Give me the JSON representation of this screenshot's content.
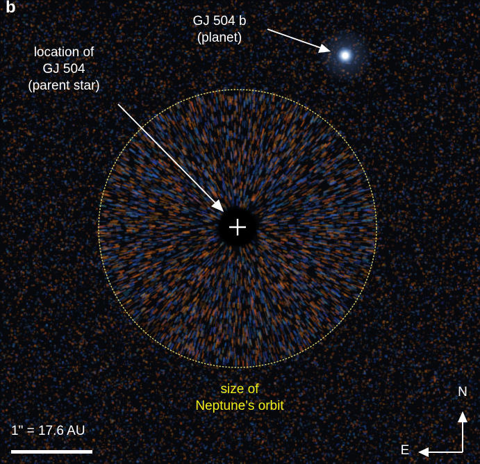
{
  "panel_label": "b",
  "labels": {
    "star_location": [
      "location of",
      "GJ 504",
      "(parent star)"
    ],
    "planet": [
      "GJ 504 b",
      "(planet)"
    ],
    "orbit": [
      "size of",
      "Neptune's orbit"
    ],
    "scale_bar": "1\" = 17.6 AU",
    "compass_north": "N",
    "compass_east": "E"
  },
  "colors": {
    "background": "#07080c",
    "noise_orange": "#c46a1e",
    "noise_blue": "#2f5fb0",
    "orbit_circle": "#e6e07a",
    "orbit_text": "#f2ee1a",
    "annotation": "#ffffff"
  },
  "icons": {
    "star_marker": "plus-icon",
    "compass": "compass-arrows-icon"
  }
}
